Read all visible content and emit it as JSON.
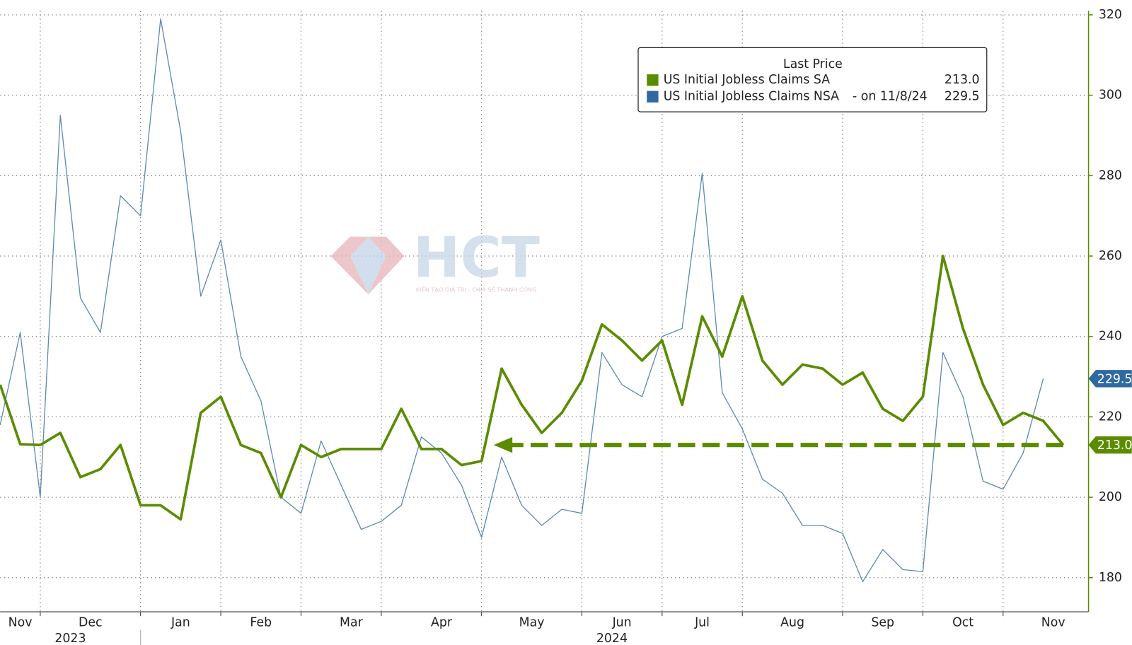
{
  "chart_data": {
    "type": "line",
    "xlim": [
      0,
      53
    ],
    "ylim": [
      171.5,
      321
    ],
    "yticks": [
      180,
      200,
      220,
      240,
      260,
      280,
      300,
      320
    ],
    "xticks": [
      {
        "value": 1,
        "label": "Nov"
      },
      {
        "value": 4.5,
        "label": "Dec"
      },
      {
        "value": 9,
        "label": "Jan"
      },
      {
        "value": 13,
        "label": "Feb"
      },
      {
        "value": 17.5,
        "label": "Mar"
      },
      {
        "value": 22,
        "label": "Apr"
      },
      {
        "value": 26.5,
        "label": "May"
      },
      {
        "value": 31,
        "label": "Jun"
      },
      {
        "value": 35,
        "label": "Jul"
      },
      {
        "value": 39.5,
        "label": "Aug"
      },
      {
        "value": 44,
        "label": "Sep"
      },
      {
        "value": 48,
        "label": "Oct"
      },
      {
        "value": 52.5,
        "label": "Nov"
      }
    ],
    "xgrid": [
      2,
      7,
      11,
      15,
      19,
      24,
      29,
      33,
      37,
      42,
      46,
      50
    ],
    "year_labels": [
      {
        "value": 3.5,
        "label": "2023"
      },
      {
        "value": 30.5,
        "label": "2024"
      }
    ],
    "grid": true,
    "legend": {
      "title": "Last Price",
      "corner": "top-right"
    },
    "series": [
      {
        "name": "US Initial Jobless Claims SA",
        "legend_suffix": "",
        "color": "#5b8c00",
        "last_value_label": "213.0",
        "values": [
          228,
          213.2,
          213,
          216,
          205,
          207,
          213,
          198,
          198,
          194.5,
          221,
          225,
          213,
          211,
          200,
          213,
          210,
          212,
          212,
          212,
          222,
          212,
          212,
          208,
          209,
          232,
          223,
          216,
          221,
          229,
          243,
          239,
          234,
          239,
          223,
          245,
          235,
          250,
          234,
          228,
          233,
          232,
          228,
          231,
          222,
          219,
          225,
          260,
          242,
          228,
          218,
          221,
          219,
          213
        ]
      },
      {
        "name": "US Initial Jobless Claims NSA",
        "legend_suffix": "-  on 11/8/24",
        "color": "#5f8ab5",
        "last_value_label": "229.5",
        "values": [
          218,
          241,
          200,
          295,
          249.6,
          241,
          275,
          270,
          319,
          291,
          250,
          264,
          235,
          224,
          200,
          196,
          214,
          203,
          192,
          194,
          198,
          215,
          211,
          203,
          190,
          210,
          198,
          193,
          197,
          196,
          236,
          228,
          225,
          240,
          242,
          280.6,
          226,
          217,
          204.5,
          201,
          193,
          193,
          191,
          179,
          187,
          182,
          181.5,
          236,
          225,
          204,
          202,
          211,
          229.5,
          null
        ]
      }
    ],
    "annotation_arrow": {
      "x_start": 53,
      "x_end": 24.6,
      "y": 213
    },
    "watermark": {
      "title": "HCT",
      "subtitle": "KIẾN TẠO GIÁ TRỊ - CHIA SẺ THÀNH CÔNG"
    }
  }
}
